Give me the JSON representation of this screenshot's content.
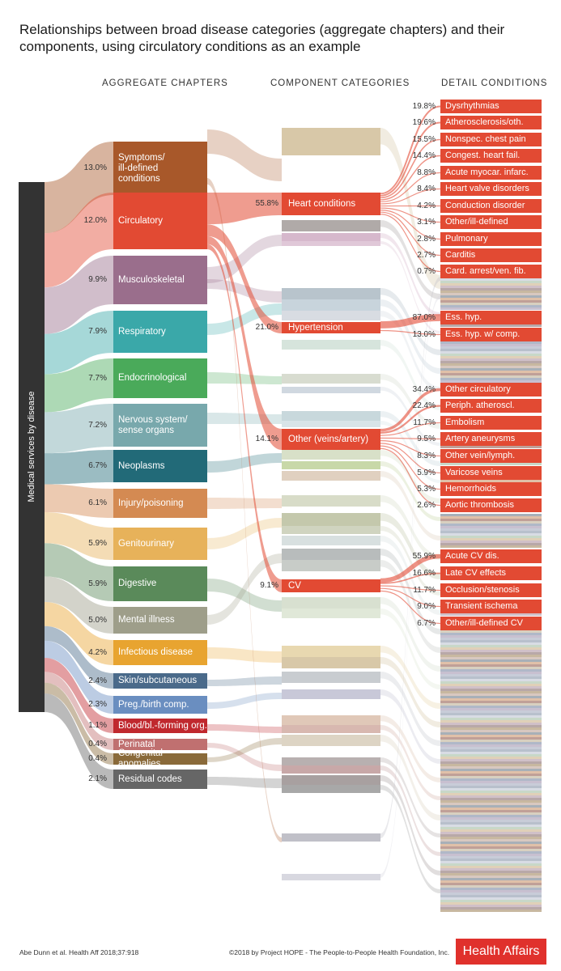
{
  "title": "Relationships between broad disease categories (aggregate chapters) and their components, using circulatory conditions as an example",
  "headers": {
    "aggregate": "AGGREGATE CHAPTERS",
    "component": "COMPONENT CATEGORIES",
    "detail": "DETAIL CONDITIONS"
  },
  "root_label": "Medical services by disease",
  "chapters": [
    {
      "label": "Symptoms/\nill-defined\nconditions",
      "pct": "13.0%",
      "color": "#a8582a"
    },
    {
      "label": "Circulatory",
      "pct": "12.0%",
      "color": "#e24a33"
    },
    {
      "label": "Musculoskeletal",
      "pct": "9.9%",
      "color": "#9a6e8c"
    },
    {
      "label": "Respiratory",
      "pct": "7.9%",
      "color": "#3aa8a9"
    },
    {
      "label": "Endocrinological",
      "pct": "7.7%",
      "color": "#4aaa5a"
    },
    {
      "label": "Nervous system/\nsense organs",
      "pct": "7.2%",
      "color": "#78a8ac"
    },
    {
      "label": "Neoplasms",
      "pct": "6.7%",
      "color": "#226a78"
    },
    {
      "label": "Injury/poisoning",
      "pct": "6.1%",
      "color": "#d48a52"
    },
    {
      "label": "Genitourinary",
      "pct": "5.9%",
      "color": "#e7b25a"
    },
    {
      "label": "Digestive",
      "pct": "5.9%",
      "color": "#5a8a5a"
    },
    {
      "label": "Mental illness",
      "pct": "5.0%",
      "color": "#9e9e8a"
    },
    {
      "label": "Infectious disease",
      "pct": "4.2%",
      "color": "#e8a430"
    },
    {
      "label": "Skin/subcutaneous",
      "pct": "2.4%",
      "color": "#4a6a8a"
    },
    {
      "label": "Preg./birth comp.",
      "pct": "2.3%",
      "color": "#6a8ec0"
    },
    {
      "label": "Blood/bl.-forming org.",
      "pct": "1.1%",
      "color": "#c0282e"
    },
    {
      "label": "Perinatal",
      "pct": "0.4%",
      "color": "#c07070"
    },
    {
      "label": "Congenital anomalies",
      "pct": "0.4%",
      "color": "#8a6a3a"
    },
    {
      "label": "Residual codes",
      "pct": "2.1%",
      "color": "#666666"
    }
  ],
  "components": [
    {
      "label": "Heart conditions",
      "pct": "55.8%"
    },
    {
      "label": "Hypertension",
      "pct": "21.0%"
    },
    {
      "label": "Other (veins/artery)",
      "pct": "14.1%"
    },
    {
      "label": "CV",
      "pct": "9.1%"
    }
  ],
  "details": [
    {
      "label": "Dysrhythmias",
      "pct": "19.8%"
    },
    {
      "label": "Atherosclerosis/oth.",
      "pct": "19.6%"
    },
    {
      "label": "Nonspec. chest pain",
      "pct": "15.5%"
    },
    {
      "label": "Congest. heart fail.",
      "pct": "14.4%"
    },
    {
      "label": "Acute myocar. infarc.",
      "pct": "8.8%"
    },
    {
      "label": "Heart valve disorders",
      "pct": "8.4%"
    },
    {
      "label": "Conduction disorder",
      "pct": "4.2%"
    },
    {
      "label": "Other/ill-defined",
      "pct": "3.1%"
    },
    {
      "label": "Pulmonary",
      "pct": "2.8%"
    },
    {
      "label": "Carditis",
      "pct": "2.7%"
    },
    {
      "label": "Card. arrest/ven. fib.",
      "pct": "0.7%"
    },
    {
      "label": "Ess. hyp.",
      "pct": "87.0%"
    },
    {
      "label": "Ess. hyp. w/ comp.",
      "pct": "13.0%"
    },
    {
      "label": "Other circulatory",
      "pct": "34.4%"
    },
    {
      "label": "Periph. atheroscl.",
      "pct": "22.4%"
    },
    {
      "label": "Embolism",
      "pct": "11.7%"
    },
    {
      "label": "Artery aneurysms",
      "pct": "9.5%"
    },
    {
      "label": "Other vein/lymph.",
      "pct": "8.3%"
    },
    {
      "label": "Varicose veins",
      "pct": "5.9%"
    },
    {
      "label": "Hemorrhoids",
      "pct": "5.3%"
    },
    {
      "label": "Aortic thrombosis",
      "pct": "2.6%"
    },
    {
      "label": "Acute CV dis.",
      "pct": "55.9%"
    },
    {
      "label": "Late CV effects",
      "pct": "16.6%"
    },
    {
      "label": "Occlusion/stenosis",
      "pct": "11.7%"
    },
    {
      "label": "Transient ischema",
      "pct": "9.0%"
    },
    {
      "label": "Other/ill-defined CV",
      "pct": "6.7%"
    }
  ],
  "footer": {
    "citation": "Abe Dunn et al. Health Aff 2018;37:918",
    "copyright": "©2018 by Project HOPE - The People-to-People Health Foundation, Inc.",
    "logo": "Health Affairs"
  },
  "colors": {
    "highlight": "#e24a33",
    "root": "#333333",
    "logo": "#e0312c"
  }
}
